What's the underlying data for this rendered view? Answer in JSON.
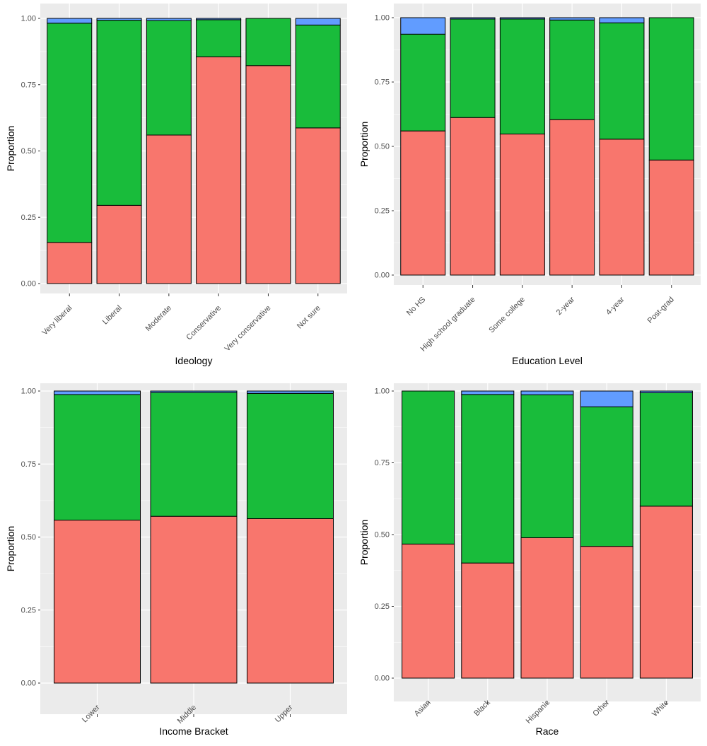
{
  "colors": {
    "panel_bg": "#ebebeb",
    "grid": "#ffffff",
    "segment_bottom": "#f8766d",
    "segment_middle": "#19bc3b",
    "segment_top": "#619cff",
    "bar_outline": "#000000",
    "tick_text": "#4d4d4d",
    "axis_title": "#000000"
  },
  "chart_data": [
    {
      "type": "bar",
      "stacked": true,
      "xlabel": "Ideology",
      "ylabel": "Proportion",
      "ylim": [
        0,
        1
      ],
      "yticks": [
        "0.00",
        "0.25",
        "0.50",
        "0.75",
        "1.00"
      ],
      "categories": [
        "Very liberal",
        "Liberal",
        "Moderate",
        "Conservative",
        "Very conservative",
        "Not sure"
      ],
      "series": [
        {
          "values": [
            0.155,
            0.295,
            0.56,
            0.855,
            0.822,
            0.587
          ]
        },
        {
          "values": [
            0.827,
            0.698,
            0.432,
            0.14,
            0.178,
            0.388
          ]
        },
        {
          "values": [
            0.018,
            0.007,
            0.008,
            0.005,
            0.0,
            0.025
          ]
        }
      ]
    },
    {
      "type": "bar",
      "stacked": true,
      "xlabel": "Education Level",
      "ylabel": "Proportion",
      "ylim": [
        0,
        1
      ],
      "yticks": [
        "0.00",
        "0.25",
        "0.50",
        "0.75",
        "1.00"
      ],
      "categories": [
        "No HS",
        "High school graduate",
        "Some college",
        "2-year",
        "4-year",
        "Post-grad"
      ],
      "series": [
        {
          "values": [
            0.56,
            0.612,
            0.548,
            0.604,
            0.528,
            0.447
          ]
        },
        {
          "values": [
            0.376,
            0.383,
            0.447,
            0.387,
            0.452,
            0.553
          ]
        },
        {
          "values": [
            0.064,
            0.005,
            0.005,
            0.009,
            0.02,
            0.0
          ]
        }
      ]
    },
    {
      "type": "bar",
      "stacked": true,
      "xlabel": "Income Bracket",
      "ylabel": "Proportion",
      "ylim": [
        0,
        1
      ],
      "yticks": [
        "0.00",
        "0.25",
        "0.50",
        "0.75",
        "1.00"
      ],
      "categories": [
        "Lower",
        "Middle",
        "Upper"
      ],
      "series": [
        {
          "values": [
            0.558,
            0.571,
            0.563
          ]
        },
        {
          "values": [
            0.43,
            0.424,
            0.429
          ]
        },
        {
          "values": [
            0.012,
            0.005,
            0.008
          ]
        }
      ]
    },
    {
      "type": "bar",
      "stacked": true,
      "xlabel": "Race",
      "ylabel": "Proportion",
      "ylim": [
        0,
        1
      ],
      "yticks": [
        "0.00",
        "0.25",
        "0.50",
        "0.75",
        "1.00"
      ],
      "categories": [
        "Asian",
        "Black",
        "Hispanic",
        "Other",
        "White"
      ],
      "series": [
        {
          "values": [
            0.467,
            0.401,
            0.489,
            0.459,
            0.599
          ]
        },
        {
          "values": [
            0.533,
            0.587,
            0.498,
            0.486,
            0.395
          ]
        },
        {
          "values": [
            0.0,
            0.012,
            0.013,
            0.055,
            0.006
          ]
        }
      ]
    }
  ]
}
